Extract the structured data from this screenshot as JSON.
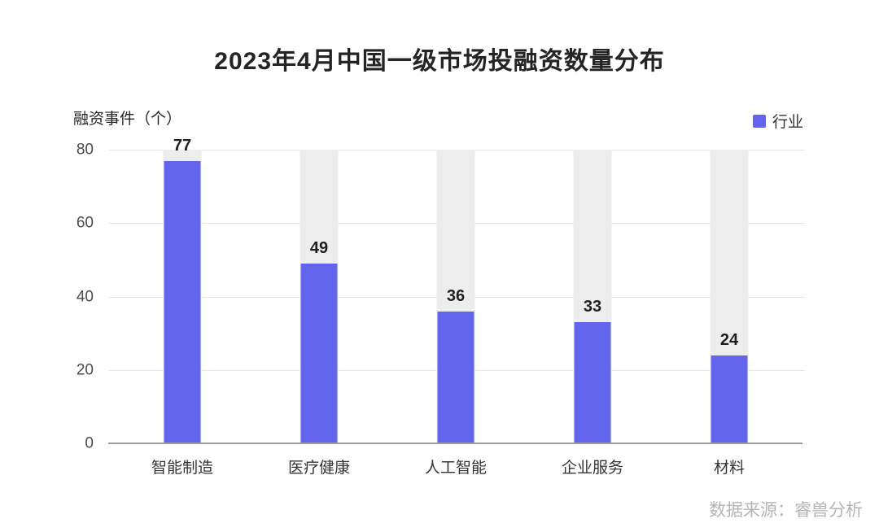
{
  "title": "2023年4月中国一级市场投融资数量分布",
  "y_axis_unit": "融资事件（个）",
  "legend": {
    "label": "行业",
    "color": "#6366ec"
  },
  "source": "数据来源：睿兽分析",
  "chart_data": {
    "type": "bar",
    "title": "2023年4月中国一级市场投融资数量分布",
    "categories": [
      "智能制造",
      "医疗健康",
      "人工智能",
      "企业服务",
      "材料"
    ],
    "series": [
      {
        "name": "行业",
        "values": [
          77,
          49,
          36,
          33,
          24
        ]
      }
    ],
    "ylabel": "融资事件（个）",
    "ylim": [
      0,
      80
    ],
    "yticks": [
      0,
      20,
      40,
      60,
      80
    ],
    "grid": true,
    "legend_position": "top-right",
    "bar_color": "#6366ec",
    "background_bar_color": "#ededed",
    "gridline_color": "#e7e7e7",
    "axis_line_color": "#9c9c9c",
    "value_label_color": "#1f1f1f",
    "source_color": "#b5b5b5"
  }
}
